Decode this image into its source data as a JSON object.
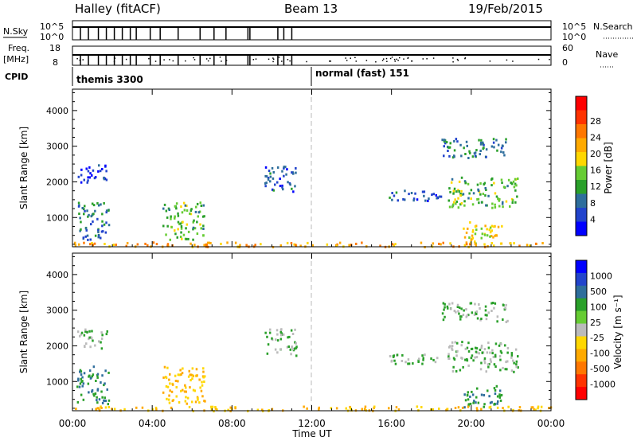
{
  "header": {
    "station": "Halley (fitACF)",
    "beam": "Beam 13",
    "date": "19/Feb/2015"
  },
  "summary": {
    "nsky_label": "N.Sky",
    "nsky_ticks": [
      "10^5",
      "10^0"
    ],
    "nsearch_label": "N.Search",
    "nsearch_ticks": [
      "10^5",
      "10^0"
    ],
    "freq_label": "Freq.",
    "freq_unit": "[MHz]",
    "freq_ticks": [
      "18",
      "8"
    ],
    "nave_label": "Nave",
    "nave_ticks": [
      "60",
      "0"
    ],
    "cpid_label": "CPID",
    "cpid_segments": [
      {
        "text": "themis 3300",
        "start_hour": 0
      },
      {
        "text": "normal (fast) 151",
        "start_hour": 12
      }
    ]
  },
  "chart_data": [
    {
      "type": "heatmap",
      "name": "power",
      "ylabel": "Slant Range [km]",
      "y_ticks": [
        "1000",
        "2000",
        "3000",
        "4000"
      ],
      "ylim": [
        180,
        4600
      ],
      "xlim": [
        0,
        24
      ],
      "colorbar": {
        "label": "Power [dB]",
        "ticks": [
          "4",
          "8",
          "12",
          "16",
          "20",
          "24",
          "28"
        ],
        "colors": [
          "#0000ff",
          "#2244cc",
          "#2e6e9c",
          "#2aa02a",
          "#66cc33",
          "#ffd700",
          "#ffaa00",
          "#ff7700",
          "#ff3300",
          "#ff0000"
        ]
      }
    },
    {
      "type": "heatmap",
      "name": "velocity",
      "ylabel": "Slant Range [km]",
      "y_ticks": [
        "1000",
        "2000",
        "3000",
        "4000"
      ],
      "ylim": [
        180,
        4600
      ],
      "xlim": [
        0,
        24
      ],
      "colorbar": {
        "label": "Velocity [m s⁻¹]",
        "ticks": [
          "1000",
          "500",
          "100",
          "25",
          "-25",
          "-100",
          "-500",
          "-1000"
        ],
        "colors": [
          "#0000ff",
          "#2244cc",
          "#2e6e9c",
          "#2aa02a",
          "#66cc33",
          "#bbbbbb",
          "#ffd700",
          "#ffaa00",
          "#ff7700",
          "#ff3300",
          "#ff0000"
        ]
      }
    }
  ],
  "xaxis": {
    "label": "Time UT",
    "ticks": [
      "00:00",
      "04:00",
      "08:00",
      "12:00",
      "16:00",
      "20:00",
      "00:00"
    ],
    "tick_hours": [
      0,
      4,
      8,
      12,
      16,
      20,
      24
    ]
  },
  "echo_regions": [
    {
      "t0": 0.2,
      "t1": 1.7,
      "r0": 1950,
      "r1": 2500,
      "power": 4,
      "vel": 25
    },
    {
      "t0": 0.2,
      "t1": 1.8,
      "r0": 400,
      "r1": 1450,
      "power": 8,
      "vel": 100
    },
    {
      "t0": 4.5,
      "t1": 6.6,
      "r0": 400,
      "r1": 1450,
      "power": 12,
      "vel": -100
    },
    {
      "t0": 9.6,
      "t1": 11.2,
      "r0": 1750,
      "r1": 2500,
      "power": 6,
      "vel": 25
    },
    {
      "t0": 15.8,
      "t1": 18.5,
      "r0": 1500,
      "r1": 1800,
      "power": 6,
      "vel": 25
    },
    {
      "t0": 18.5,
      "t1": 21.8,
      "r0": 2700,
      "r1": 3250,
      "power": 8,
      "vel": 25
    },
    {
      "t0": 18.8,
      "t1": 22.3,
      "r0": 1300,
      "r1": 2150,
      "power": 12,
      "vel": 25
    },
    {
      "t0": 19.5,
      "t1": 21.5,
      "r0": 300,
      "r1": 900,
      "power": 16,
      "vel": 100
    },
    {
      "t0": 0.0,
      "t1": 24.0,
      "r0": 200,
      "r1": 330,
      "power": 20,
      "vel": -100
    }
  ]
}
